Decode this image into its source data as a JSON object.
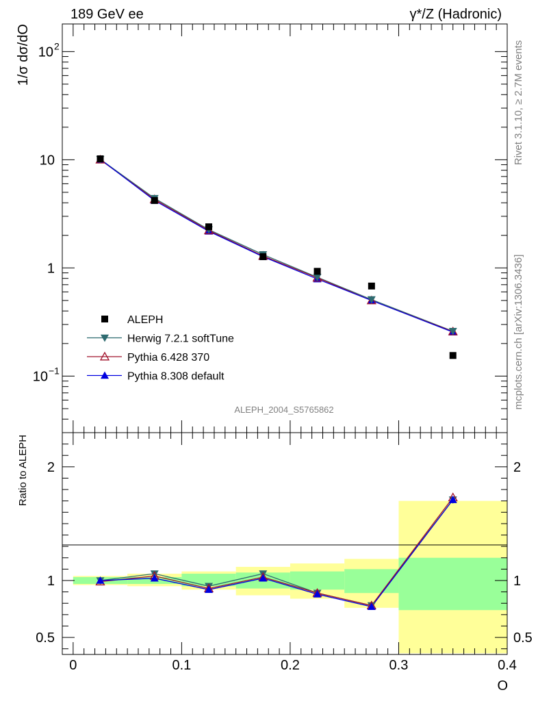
{
  "header": {
    "left_title": "189 GeV ee",
    "right_title": "γ*/Z (Hadronic)"
  },
  "side_texts": {
    "rivet": "Rivet 3.1.10, ≥ 2.7M events",
    "mcplots": "mcplots.cern.ch [arXiv:1306.3436]"
  },
  "watermark": "ALEPH_2004_S5765862",
  "chart_data": [
    {
      "type": "scatter",
      "panel": "main",
      "ylabel": "1/σ  dσ/dO",
      "yscale": "log",
      "ylim": [
        0.03,
        180
      ],
      "xlim": [
        -0.01,
        0.4
      ],
      "yticks_major": [
        {
          "value": 0.1,
          "label_base": "10",
          "label_exp": "−1"
        },
        {
          "value": 1,
          "label_base": "1",
          "label_exp": ""
        },
        {
          "value": 10,
          "label_base": "10",
          "label_exp": ""
        },
        {
          "value": 100,
          "label_base": "10",
          "label_exp": "2"
        }
      ],
      "legend_position": "lower-left",
      "series": [
        {
          "name": "ALEPH",
          "marker": "square",
          "color": "#000000",
          "x": [
            0.025,
            0.075,
            0.125,
            0.175,
            0.225,
            0.275,
            0.35
          ],
          "y": [
            10.2,
            4.2,
            2.4,
            1.27,
            0.93,
            0.68,
            0.155
          ]
        },
        {
          "name": "Herwig 7.2.1 softTune",
          "marker": "triangle-down",
          "color": "#2e6b70",
          "x": [
            0.025,
            0.075,
            0.125,
            0.175,
            0.225,
            0.275,
            0.35
          ],
          "y": [
            10.1,
            4.4,
            2.26,
            1.33,
            0.82,
            0.51,
            0.26
          ]
        },
        {
          "name": "Pythia 6.428 370",
          "marker": "triangle-up-open",
          "color": "#a0102a",
          "x": [
            0.025,
            0.075,
            0.125,
            0.175,
            0.225,
            0.275,
            0.35
          ],
          "y": [
            10.0,
            4.3,
            2.22,
            1.29,
            0.81,
            0.5,
            0.258
          ]
        },
        {
          "name": "Pythia 8.308 default",
          "marker": "triangle-up",
          "color": "#0000e0",
          "x": [
            0.025,
            0.075,
            0.125,
            0.175,
            0.225,
            0.275,
            0.35
          ],
          "y": [
            10.1,
            4.2,
            2.18,
            1.27,
            0.79,
            0.5,
            0.255
          ]
        }
      ]
    },
    {
      "type": "line",
      "panel": "ratio",
      "ylabel": "Ratio to ALEPH",
      "xlabel": "O",
      "ylim": [
        0.35,
        2.3
      ],
      "xlim": [
        -0.01,
        0.4
      ],
      "xticks": [
        {
          "value": 0,
          "label": "0"
        },
        {
          "value": 0.1,
          "label": "0.1"
        },
        {
          "value": 0.2,
          "label": "0.2"
        },
        {
          "value": 0.3,
          "label": "0.3"
        },
        {
          "value": 0.4,
          "label": "0.4"
        }
      ],
      "yticks": [
        {
          "value": 0.5,
          "label": "0.5"
        },
        {
          "value": 1,
          "label": "1"
        },
        {
          "value": 2,
          "label": "2"
        }
      ],
      "uncertainty_bands": [
        {
          "x0": 0.0,
          "x1": 0.05,
          "yellow": [
            0.96,
            1.04
          ],
          "green": [
            0.97,
            1.03
          ]
        },
        {
          "x0": 0.05,
          "x1": 0.1,
          "yellow": [
            0.95,
            1.06
          ],
          "green": [
            0.97,
            1.03
          ]
        },
        {
          "x0": 0.1,
          "x1": 0.15,
          "yellow": [
            0.92,
            1.08
          ],
          "green": [
            0.95,
            1.06
          ]
        },
        {
          "x0": 0.15,
          "x1": 0.2,
          "yellow": [
            0.87,
            1.12
          ],
          "green": [
            0.93,
            1.07
          ]
        },
        {
          "x0": 0.2,
          "x1": 0.25,
          "yellow": [
            0.84,
            1.15
          ],
          "green": [
            0.92,
            1.08
          ]
        },
        {
          "x0": 0.25,
          "x1": 0.3,
          "yellow": [
            0.76,
            1.19
          ],
          "green": [
            0.89,
            1.1
          ]
        },
        {
          "x0": 0.3,
          "x1": 0.4,
          "yellow": [
            0.36,
            1.7
          ],
          "green": [
            0.74,
            1.2
          ]
        }
      ],
      "band_colors": {
        "yellow": "#ffff99",
        "green": "#99ff99"
      },
      "series": [
        {
          "name": "Herwig 7.2.1 softTune",
          "marker": "triangle-down",
          "color": "#2e6b70",
          "x": [
            0.025,
            0.075,
            0.125,
            0.175,
            0.225,
            0.275,
            0.35
          ],
          "y": [
            1.0,
            1.06,
            0.95,
            1.06,
            0.89,
            0.78,
            1.71
          ]
        },
        {
          "name": "Pythia 6.428 370",
          "marker": "triangle-up-open",
          "color": "#a0102a",
          "x": [
            0.025,
            0.075,
            0.125,
            0.175,
            0.225,
            0.275,
            0.35
          ],
          "y": [
            0.99,
            1.04,
            0.93,
            1.03,
            0.89,
            0.78,
            1.73
          ]
        },
        {
          "name": "Pythia 8.308 default",
          "marker": "triangle-up",
          "color": "#0000e0",
          "x": [
            0.025,
            0.075,
            0.125,
            0.175,
            0.225,
            0.275,
            0.35
          ],
          "y": [
            1.0,
            1.02,
            0.92,
            1.02,
            0.88,
            0.77,
            1.71
          ]
        }
      ]
    }
  ]
}
